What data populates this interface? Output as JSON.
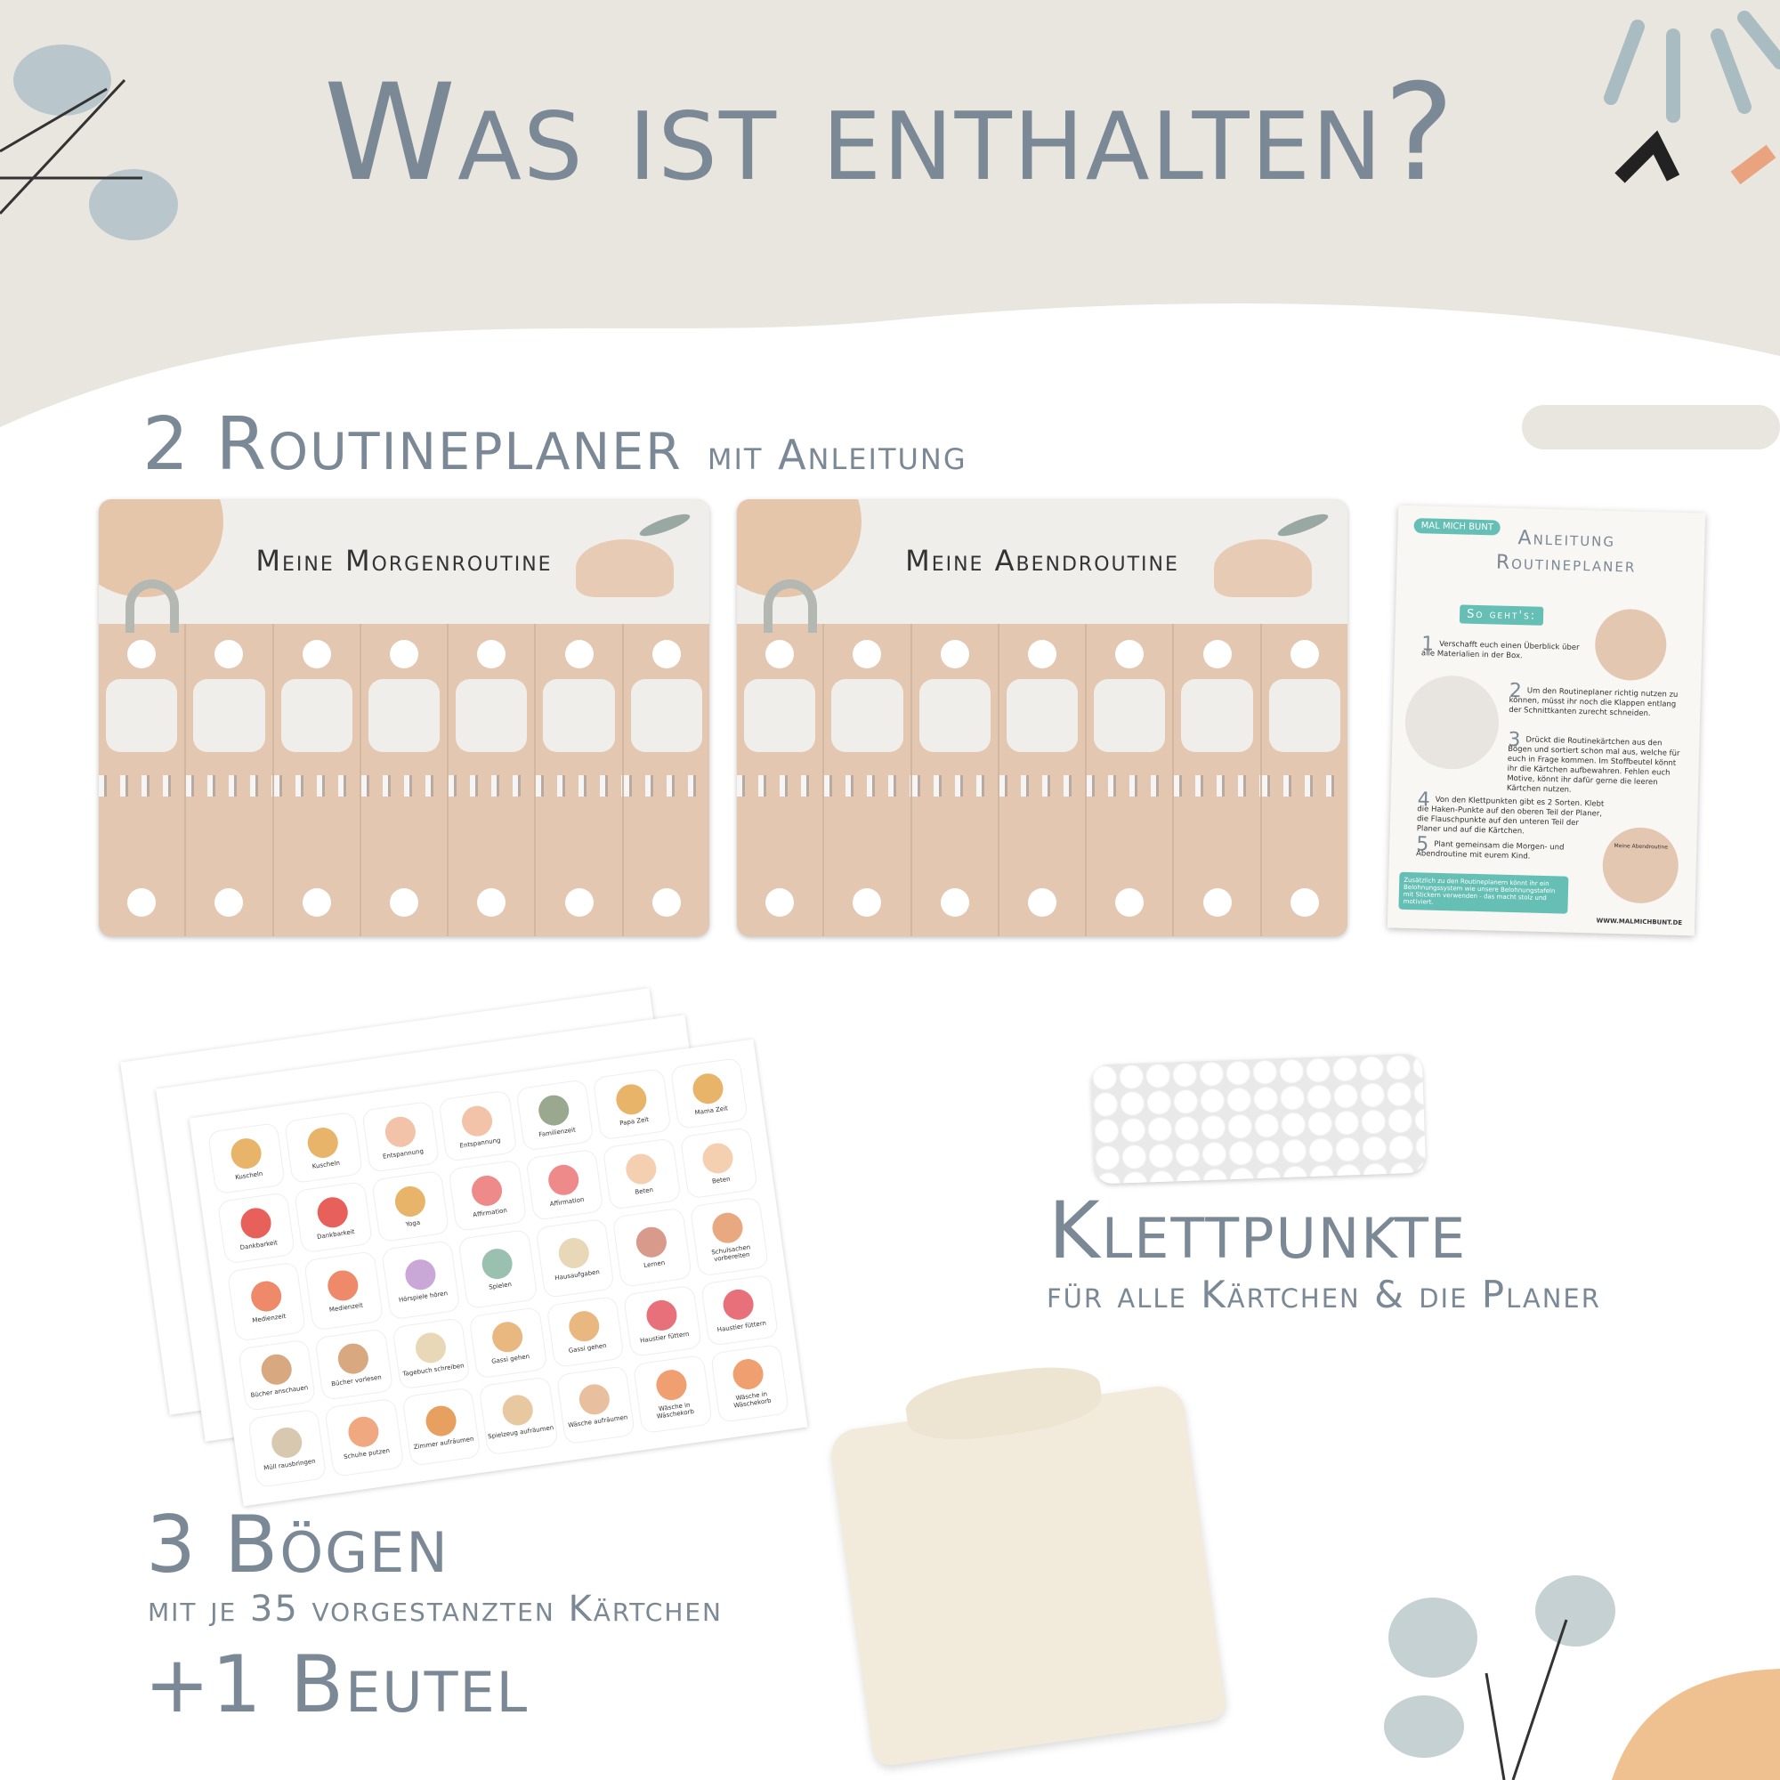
{
  "title": "Was ist enthalten?",
  "colors": {
    "heading": "#7b8895",
    "peach": "#e3c7b1",
    "light": "#efeeea",
    "teal": "#66bfb5"
  },
  "planners": {
    "heading": "2 Routineplaner",
    "heading_suffix": "mit Anleitung",
    "items": [
      {
        "title": "Meine Morgenroutine"
      },
      {
        "title": "Meine Abendroutine"
      }
    ]
  },
  "instructions": {
    "brand": "MAL MICH BUNT",
    "title_line1": "Anleitung",
    "title_line2": "Routineplaner",
    "badge": "So geht's:",
    "steps": [
      {
        "n": "1",
        "text": "Verschafft euch einen Überblick über alle Materialien in der Box."
      },
      {
        "n": "2",
        "text": "Um den Routineplaner richtig nutzen zu können, müsst ihr noch die Klappen entlang der Schnittkanten zurecht schneiden."
      },
      {
        "n": "3",
        "text": "Drückt die Routinekärtchen aus den Bögen und sortiert schon mal aus, welche für euch in Frage kommen. Im Stoffbeutel könnt ihr die Kärtchen aufbewahren. Fehlen euch Motive, könnt ihr dafür gerne die leeren Kärtchen nutzen."
      },
      {
        "n": "4",
        "text": "Von den Klettpunkten gibt es 2 Sorten. Klebt die Haken-Punkte auf den oberen Teil der Planer, die Flauschpunkte auf den unteren Teil der Planer und auf die Kärtchen."
      },
      {
        "n": "5",
        "text": "Plant gemeinsam die Morgen- und Abendroutine mit eurem Kind."
      }
    ],
    "note": "Zusätzlich zu den Routineplanern könnt ihr ein Belohnungssystem wie unsere Belohnungstafeln mit Stickern verwenden - das macht stolz und motiviert.",
    "thumb_label": "Meine Abendroutine",
    "url": "WWW.MALMICHBUNT.DE"
  },
  "stickers": [
    {
      "label": "Kuscheln",
      "color": "#e8b46a"
    },
    {
      "label": "Kuscheln",
      "color": "#e8b46a"
    },
    {
      "label": "Entspannung",
      "color": "#f2c3a8"
    },
    {
      "label": "Entspannung",
      "color": "#f2c3a8"
    },
    {
      "label": "Familienzeit",
      "color": "#9aa88f"
    },
    {
      "label": "Papa Zeit",
      "color": "#e8b46a"
    },
    {
      "label": "Mama Zeit",
      "color": "#e8b46a"
    },
    {
      "label": "Dankbarkeit",
      "color": "#e8605a"
    },
    {
      "label": "Dankbarkeit",
      "color": "#e8605a"
    },
    {
      "label": "Yoga",
      "color": "#e8b46a"
    },
    {
      "label": "Affirmation",
      "color": "#ee8a8a"
    },
    {
      "label": "Affirmation",
      "color": "#ee8a8a"
    },
    {
      "label": "Beten",
      "color": "#f5d0b0"
    },
    {
      "label": "Beten",
      "color": "#f5d0b0"
    },
    {
      "label": "Medienzeit",
      "color": "#ee8a6a"
    },
    {
      "label": "Medienzeit",
      "color": "#ee8a6a"
    },
    {
      "label": "Hörspiele hören",
      "color": "#c9a8d8"
    },
    {
      "label": "Spielen",
      "color": "#9ac0b0"
    },
    {
      "label": "Hausaufgaben",
      "color": "#e8d8b8"
    },
    {
      "label": "Lernen",
      "color": "#d89a8a"
    },
    {
      "label": "Schulsachen vorbereiten",
      "color": "#e8a880"
    },
    {
      "label": "Bücher anschauen",
      "color": "#d8a880"
    },
    {
      "label": "Bücher vorlesen",
      "color": "#d8a880"
    },
    {
      "label": "Tagebuch schreiben",
      "color": "#e8d8b8"
    },
    {
      "label": "Gassi gehen",
      "color": "#e8b880"
    },
    {
      "label": "Gassi gehen",
      "color": "#e8b880"
    },
    {
      "label": "Haustier füttern",
      "color": "#e8707a"
    },
    {
      "label": "Haustier füttern",
      "color": "#e8707a"
    },
    {
      "label": "Müll rausbringen",
      "color": "#d8c8b0"
    },
    {
      "label": "Schuhe putzen",
      "color": "#f0a880"
    },
    {
      "label": "Zimmer aufräumen",
      "color": "#e8a060"
    },
    {
      "label": "Spielzeug aufräumen",
      "color": "#e8c8a0"
    },
    {
      "label": "Wäsche aufräumen",
      "color": "#e8c0a0"
    },
    {
      "label": "Wäsche in Wäschekorb",
      "color": "#f0a070"
    },
    {
      "label": "Wäsche in Wäschekorb",
      "color": "#f0a070"
    }
  ],
  "velcro": {
    "heading": "Klettpunkte",
    "sub": "für alle Kärtchen & die Planer"
  },
  "sheets": {
    "heading": "3 Bögen",
    "sub": "mit je 35 vorgestanzten Kärtchen"
  },
  "bag": {
    "heading": "+1 Beutel"
  }
}
